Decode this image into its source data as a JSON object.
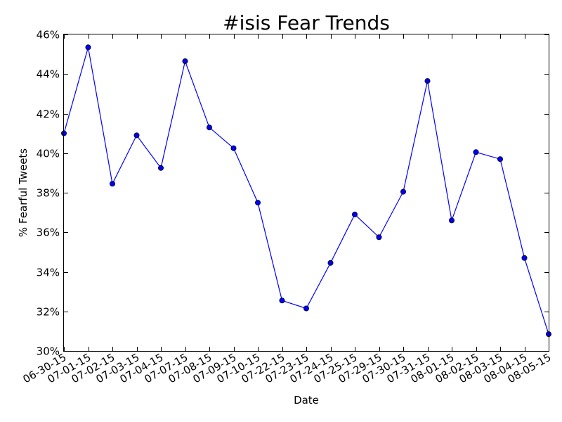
{
  "chart_data": {
    "type": "line",
    "title": "#isis Fear Trends",
    "xlabel": "Date",
    "ylabel": "% Fearful Tweets",
    "categories": [
      "06-30-15",
      "07-01-15",
      "07-02-15",
      "07-03-15",
      "07-04-15",
      "07-07-15",
      "07-08-15",
      "07-09-15",
      "07-10-15",
      "07-22-15",
      "07-23-15",
      "07-24-15",
      "07-25-15",
      "07-29-15",
      "07-30-15",
      "07-31-15",
      "08-01-15",
      "08-02-15",
      "08-03-15",
      "08-04-15",
      "08-05-15"
    ],
    "series": [
      {
        "values": [
          41.0,
          45.35,
          38.45,
          40.9,
          39.25,
          44.65,
          41.3,
          40.25,
          37.5,
          32.55,
          32.15,
          34.45,
          36.9,
          35.75,
          38.05,
          43.65,
          36.6,
          40.05,
          39.7,
          34.7,
          30.85
        ],
        "color": "#0000ff"
      }
    ],
    "ylim": [
      30,
      46
    ],
    "yticks": [
      30,
      32,
      34,
      36,
      38,
      40,
      42,
      44,
      46
    ],
    "ytick_format": "%",
    "grid": false
  }
}
